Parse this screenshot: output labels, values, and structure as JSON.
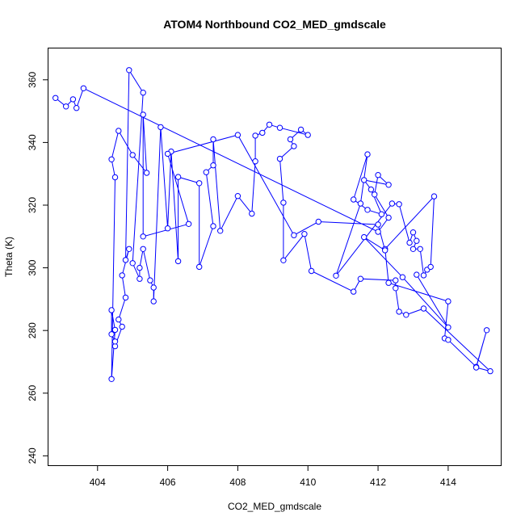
{
  "chart_data": {
    "type": "line",
    "title": "ATOM4 Northbound CO2_MED_gmdscale",
    "xlabel": "CO2_MED_gmdscale",
    "ylabel": "Theta (K)",
    "xlim": [
      402.6,
      415.5
    ],
    "ylim": [
      237,
      370
    ],
    "x_ticks": [
      "404",
      "406",
      "408",
      "410",
      "412",
      "414"
    ],
    "y_ticks": [
      "240",
      "260",
      "280",
      "300",
      "320",
      "340",
      "360"
    ],
    "grid": false,
    "series": [
      {
        "color": "#0000ff",
        "marker": "open-circle",
        "points": [
          [
            402.8,
            354.2
          ],
          [
            403.1,
            351.5
          ],
          [
            403.3,
            353.8
          ],
          [
            403.4,
            351.0
          ],
          [
            403.6,
            357.3
          ],
          [
            412.0,
            311.5
          ],
          [
            412.3,
            316.0
          ],
          [
            411.9,
            323.4
          ],
          [
            412.0,
            329.6
          ],
          [
            412.3,
            326.5
          ],
          [
            411.6,
            328.0
          ],
          [
            411.8,
            325.0
          ],
          [
            412.1,
            317.1
          ],
          [
            411.7,
            318.5
          ],
          [
            411.3,
            321.8
          ],
          [
            411.7,
            336.2
          ],
          [
            411.5,
            320.5
          ],
          [
            410.8,
            297.5
          ],
          [
            412.4,
            320.5
          ],
          [
            412.6,
            320.3
          ],
          [
            412.9,
            308.0
          ],
          [
            413.0,
            311.3
          ],
          [
            413.1,
            308.6
          ],
          [
            413.0,
            306.0
          ],
          [
            413.2,
            306.0
          ],
          [
            413.3,
            297.6
          ],
          [
            413.4,
            299.4
          ],
          [
            413.5,
            300.3
          ],
          [
            413.6,
            322.8
          ],
          [
            412.2,
            306.0
          ],
          [
            412.3,
            295.2
          ],
          [
            414.0,
            289.3
          ],
          [
            413.9,
            277.5
          ],
          [
            414.0,
            277.0
          ],
          [
            414.8,
            268.4
          ],
          [
            415.1,
            280.1
          ],
          [
            414.8,
            268.2
          ],
          [
            415.2,
            267.0
          ],
          [
            413.3,
            287.0
          ],
          [
            412.8,
            285.0
          ],
          [
            412.6,
            286.0
          ],
          [
            412.5,
            293.5
          ],
          [
            412.5,
            296.0
          ],
          [
            411.5,
            296.5
          ],
          [
            411.3,
            292.4
          ],
          [
            410.1,
            299.0
          ],
          [
            409.9,
            310.8
          ],
          [
            409.3,
            302.4
          ],
          [
            409.3,
            320.8
          ],
          [
            409.2,
            334.8
          ],
          [
            409.6,
            338.8
          ],
          [
            409.5,
            341.0
          ],
          [
            409.8,
            344.1
          ],
          [
            410.0,
            342.4
          ],
          [
            409.2,
            344.7
          ],
          [
            408.9,
            345.7
          ],
          [
            408.7,
            343.1
          ],
          [
            408.5,
            342.2
          ],
          [
            408.5,
            334.0
          ],
          [
            408.4,
            317.3
          ],
          [
            408.0,
            322.9
          ],
          [
            407.5,
            311.8
          ],
          [
            407.3,
            341.0
          ],
          [
            407.3,
            332.7
          ],
          [
            407.1,
            330.5
          ],
          [
            407.3,
            313.3
          ],
          [
            406.9,
            300.3
          ],
          [
            406.9,
            327.0
          ],
          [
            406.3,
            329.0
          ],
          [
            406.3,
            302.1
          ],
          [
            406.1,
            337.1
          ],
          [
            406.0,
            312.6
          ],
          [
            405.8,
            344.9
          ],
          [
            405.6,
            289.3
          ],
          [
            405.6,
            293.7
          ],
          [
            405.5,
            296.0
          ],
          [
            405.3,
            306.0
          ],
          [
            405.2,
            300.0
          ],
          [
            405.2,
            296.5
          ],
          [
            405.0,
            301.5
          ],
          [
            405.3,
            355.9
          ],
          [
            404.9,
            363.1
          ],
          [
            404.8,
            302.5
          ],
          [
            404.9,
            306.0
          ],
          [
            404.7,
            297.6
          ],
          [
            404.8,
            290.5
          ],
          [
            404.6,
            283.5
          ],
          [
            404.7,
            281.2
          ],
          [
            404.5,
            275.0
          ],
          [
            404.5,
            276.5
          ],
          [
            404.4,
            278.8
          ],
          [
            404.4,
            286.5
          ],
          [
            404.5,
            280.2
          ],
          [
            404.4,
            264.5
          ],
          [
            404.5,
            328.9
          ],
          [
            404.4,
            334.6
          ],
          [
            404.6,
            343.7
          ],
          [
            405.0,
            336.0
          ],
          [
            405.4,
            330.3
          ],
          [
            405.3,
            348.9
          ],
          [
            405.3,
            310.0
          ],
          [
            406.6,
            314.0
          ],
          [
            406.0,
            336.4
          ],
          [
            408.0,
            342.4
          ],
          [
            409.6,
            310.4
          ],
          [
            410.3,
            314.7
          ],
          [
            412.0,
            313.8
          ],
          [
            412.2,
            305.6
          ],
          [
            411.6,
            309.8
          ],
          [
            412.7,
            297.0
          ],
          [
            414.0,
            281.0
          ],
          [
            413.1,
            297.8
          ]
        ]
      }
    ]
  }
}
